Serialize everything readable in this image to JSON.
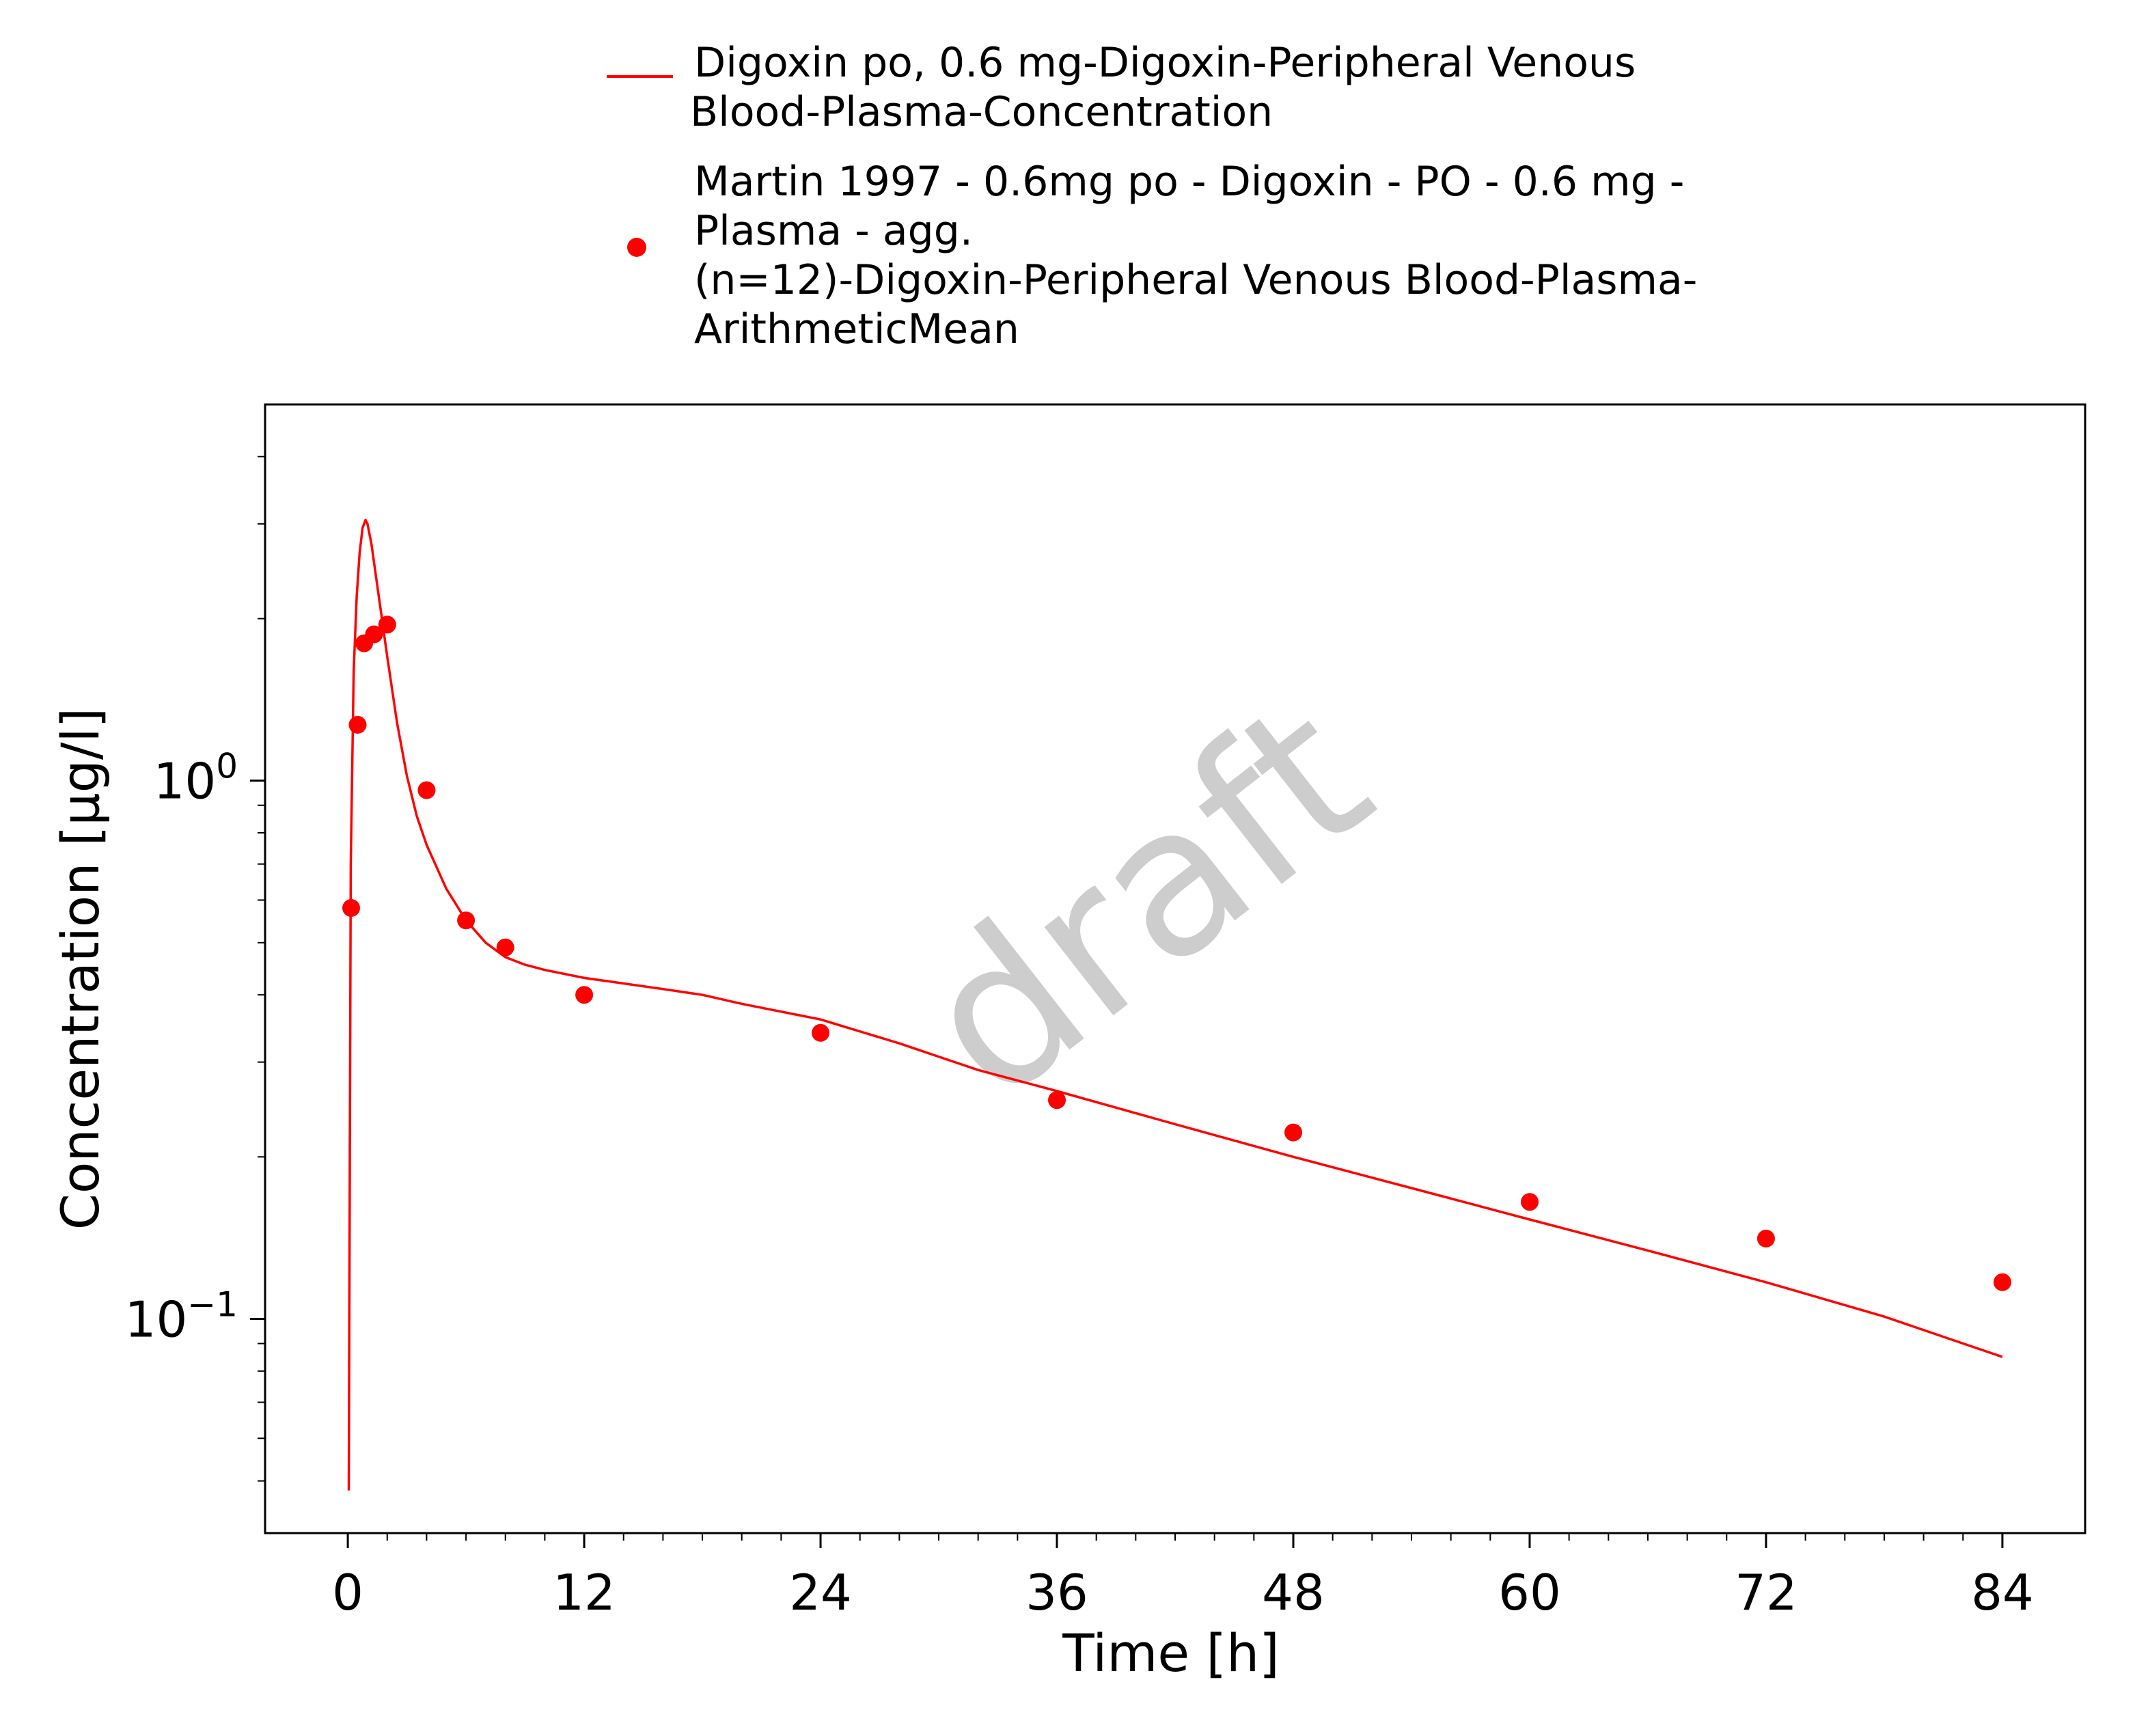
{
  "chart_data": {
    "type": "line",
    "title": "",
    "xlabel": "Time [h]",
    "ylabel": "Concentration [µg/l]",
    "y_scale": "log",
    "xlim": [
      -4.2,
      88.2
    ],
    "ylim": [
      0.04,
      5.0
    ],
    "grid": false,
    "legend_placement": "top",
    "x_ticks": [
      0,
      12,
      24,
      36,
      48,
      60,
      72,
      84
    ],
    "y_ticks": [
      {
        "value": 1.0,
        "base": "10",
        "exponent": "0"
      },
      {
        "value": 0.1,
        "base": "10",
        "exponent": "−1"
      }
    ],
    "watermark": "draft",
    "colors": {
      "series": "#ff0000",
      "frame": "#000000",
      "watermark": "#bdbdbd"
    },
    "series": [
      {
        "name": "Digoxin po, 0.6 mg-Digoxin-Peripheral Venous Blood-Plasma-Concentration",
        "legend_lines": [
          "Digoxin po, 0.6 mg-Digoxin-Peripheral Venous",
          "Blood-Plasma-Concentration"
        ],
        "type": "line",
        "color": "#ff0000",
        "x": [
          0.05,
          0.15,
          0.3,
          0.45,
          0.6,
          0.75,
          0.9,
          1.0,
          1.2,
          1.5,
          2.0,
          2.5,
          3.0,
          3.5,
          4.0,
          5.0,
          6.0,
          7.0,
          8.0,
          9.0,
          10.0,
          12.0,
          14.0,
          16.0,
          18.0,
          20.0,
          24.0,
          28.0,
          32.0,
          36.0,
          42.0,
          48.0,
          54.0,
          60.0,
          66.0,
          72.0,
          78.0,
          84.0
        ],
        "y": [
          0.048,
          0.7,
          1.6,
          2.2,
          2.65,
          2.95,
          3.05,
          3.0,
          2.75,
          2.3,
          1.7,
          1.28,
          1.02,
          0.86,
          0.76,
          0.63,
          0.55,
          0.5,
          0.47,
          0.455,
          0.445,
          0.43,
          0.42,
          0.41,
          0.4,
          0.385,
          0.36,
          0.325,
          0.29,
          0.265,
          0.23,
          0.2,
          0.175,
          0.153,
          0.134,
          0.117,
          0.101,
          0.085
        ]
      },
      {
        "name": "Martin 1997 - 0.6mg po - Digoxin - PO - 0.6 mg - Plasma - agg. (n=12)-Digoxin-Peripheral Venous Blood-Plasma-ArithmeticMean",
        "legend_lines": [
          "Martin 1997 - 0.6mg po - Digoxin - PO - 0.6 mg -",
          "Plasma - agg.",
          "(n=12)-Digoxin-Peripheral Venous Blood-Plasma-",
          "ArithmeticMean"
        ],
        "type": "scatter",
        "color": "#ff0000",
        "x": [
          0.17,
          0.5,
          0.83,
          1.33,
          2.0,
          4.0,
          6.0,
          8.0,
          12.0,
          24.0,
          36.0,
          48.0,
          60.0,
          72.0,
          84.0
        ],
        "y": [
          0.58,
          1.27,
          1.8,
          1.87,
          1.95,
          0.96,
          0.55,
          0.49,
          0.4,
          0.34,
          0.255,
          0.222,
          0.165,
          0.141,
          0.117
        ]
      }
    ]
  }
}
